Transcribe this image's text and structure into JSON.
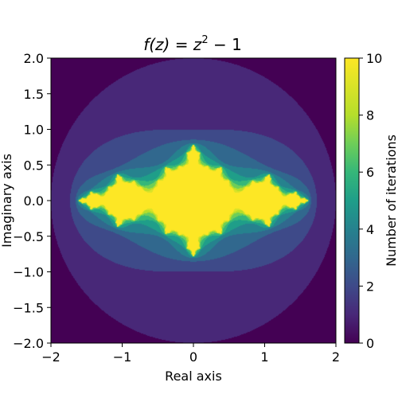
{
  "chart_data": {
    "type": "heatmap",
    "title_main": "f(z) = z",
    "title_exp": "2",
    "title_tail": " − 1",
    "xlabel": "Real axis",
    "ylabel": "Imaginary axis",
    "xlim": [
      -2,
      2
    ],
    "ylim": [
      -2,
      2
    ],
    "x_ticks": [
      -2,
      -1,
      0,
      1,
      2
    ],
    "x_tick_labels": [
      "−2",
      "−1",
      "0",
      "1",
      "2"
    ],
    "y_ticks": [
      2.0,
      1.5,
      1.0,
      0.5,
      0.0,
      -0.5,
      -1.0,
      -1.5,
      -2.0
    ],
    "y_tick_labels": [
      "2.0",
      "1.5",
      "1.0",
      "0.5",
      "0.0",
      "−0.5",
      "−1.0",
      "−1.5",
      "−2.0"
    ],
    "function": "z^2 - 1",
    "c": [
      -1,
      0
    ],
    "escape_radius": 2,
    "max_iter": 10,
    "colormap": "viridis",
    "colorbar": {
      "label": "Number of iterations",
      "range": [
        0,
        10
      ],
      "ticks": [
        0,
        2,
        4,
        6,
        8,
        10
      ],
      "tick_labels": [
        "0",
        "2",
        "4",
        "6",
        "8",
        "10"
      ]
    },
    "grid": false
  }
}
